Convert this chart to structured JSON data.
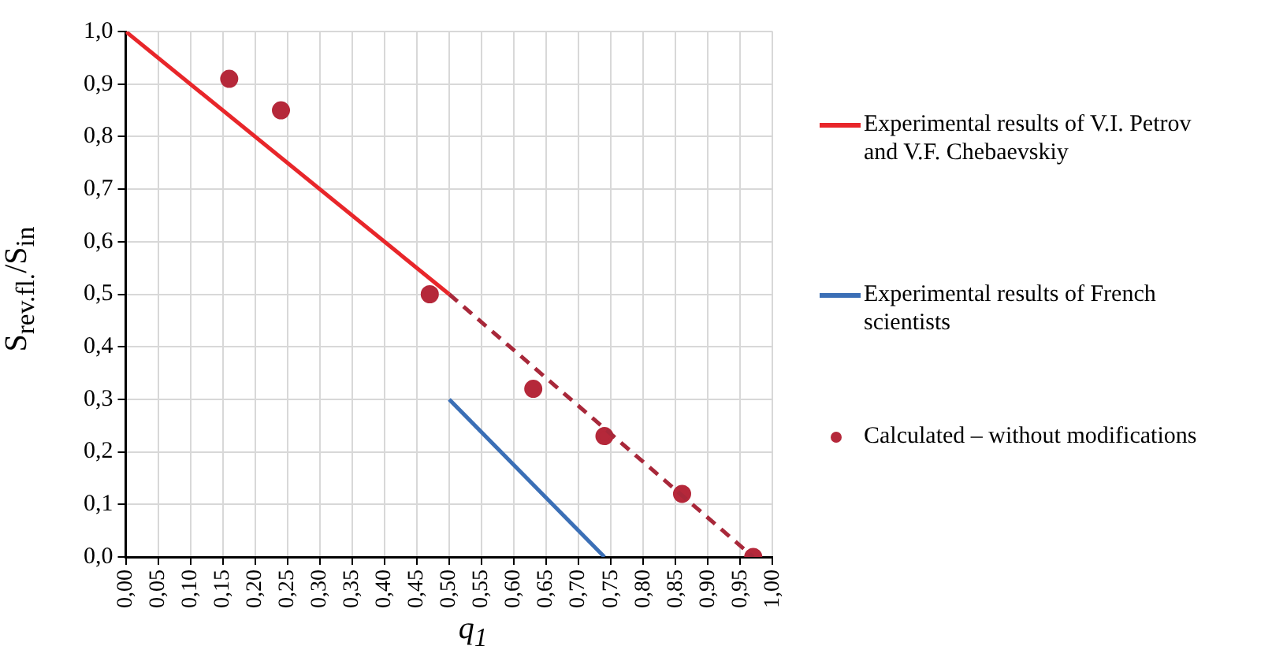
{
  "chart_data": {
    "type": "line",
    "xlabel": "q$_{1}$",
    "ylabel": "S$_{rev.fl.}$/S$_{in}$",
    "xlim": [
      0,
      1
    ],
    "ylim": [
      0,
      1
    ],
    "xticks": [
      {
        "value": 0,
        "label": "0,00"
      },
      {
        "value": 0.05,
        "label": "0,05"
      },
      {
        "value": 0.1,
        "label": "0,10"
      },
      {
        "value": 0.15,
        "label": "0,15"
      },
      {
        "value": 0.2,
        "label": "0,20"
      },
      {
        "value": 0.25,
        "label": "0,25"
      },
      {
        "value": 0.3,
        "label": "0,30"
      },
      {
        "value": 0.35,
        "label": "0,35"
      },
      {
        "value": 0.4,
        "label": "0,40"
      },
      {
        "value": 0.45,
        "label": "0,45"
      },
      {
        "value": 0.5,
        "label": "0,50"
      },
      {
        "value": 0.55,
        "label": "0,55"
      },
      {
        "value": 0.6,
        "label": "0,60"
      },
      {
        "value": 0.65,
        "label": "0,65"
      },
      {
        "value": 0.7,
        "label": "0,70"
      },
      {
        "value": 0.75,
        "label": "0,75"
      },
      {
        "value": 0.8,
        "label": "0,80"
      },
      {
        "value": 0.85,
        "label": "0,85"
      },
      {
        "value": 0.9,
        "label": "0,90"
      },
      {
        "value": 0.95,
        "label": "0,95"
      },
      {
        "value": 1,
        "label": "1,00"
      }
    ],
    "yticks": [
      {
        "value": 0,
        "label": "0,0"
      },
      {
        "value": 0.1,
        "label": "0,1"
      },
      {
        "value": 0.2,
        "label": "0,2"
      },
      {
        "value": 0.3,
        "label": "0,3"
      },
      {
        "value": 0.4,
        "label": "0,4"
      },
      {
        "value": 0.5,
        "label": "0,5"
      },
      {
        "value": 0.6,
        "label": "0,6"
      },
      {
        "value": 0.7,
        "label": "0,7"
      },
      {
        "value": 0.8,
        "label": "0,8"
      },
      {
        "value": 0.9,
        "label": "0,9"
      },
      {
        "value": 1,
        "label": "1,0"
      }
    ],
    "grid": true,
    "legend": "right",
    "series": [
      {
        "name": "Experimental results of V.I. Petrov and V.F. Chebaevskiy",
        "color": "#e8262a",
        "line_style": "solid",
        "marker": "none",
        "x": [
          0,
          0.5
        ],
        "values": [
          1,
          0.5
        ]
      },
      {
        "color": "#a8283a",
        "line_style": "dashed",
        "marker": "none",
        "x": [
          0.5,
          0.97
        ],
        "values": [
          0.5,
          0
        ]
      },
      {
        "name": "Experimental results of French scientists",
        "color": "#3b6fb6",
        "line_style": "solid",
        "marker": "none",
        "x": [
          0.5,
          0.74
        ],
        "values": [
          0.3,
          0
        ]
      },
      {
        "type": "scatter",
        "name": "Calculated – without modifications",
        "color": "#b5283a",
        "marker": "circle",
        "x": [
          0.16,
          0.24,
          0.47,
          0.63,
          0.74,
          0.86,
          0.97
        ],
        "values": [
          0.91,
          0.85,
          0.5,
          0.32,
          0.23,
          0.12,
          0
        ]
      }
    ]
  }
}
